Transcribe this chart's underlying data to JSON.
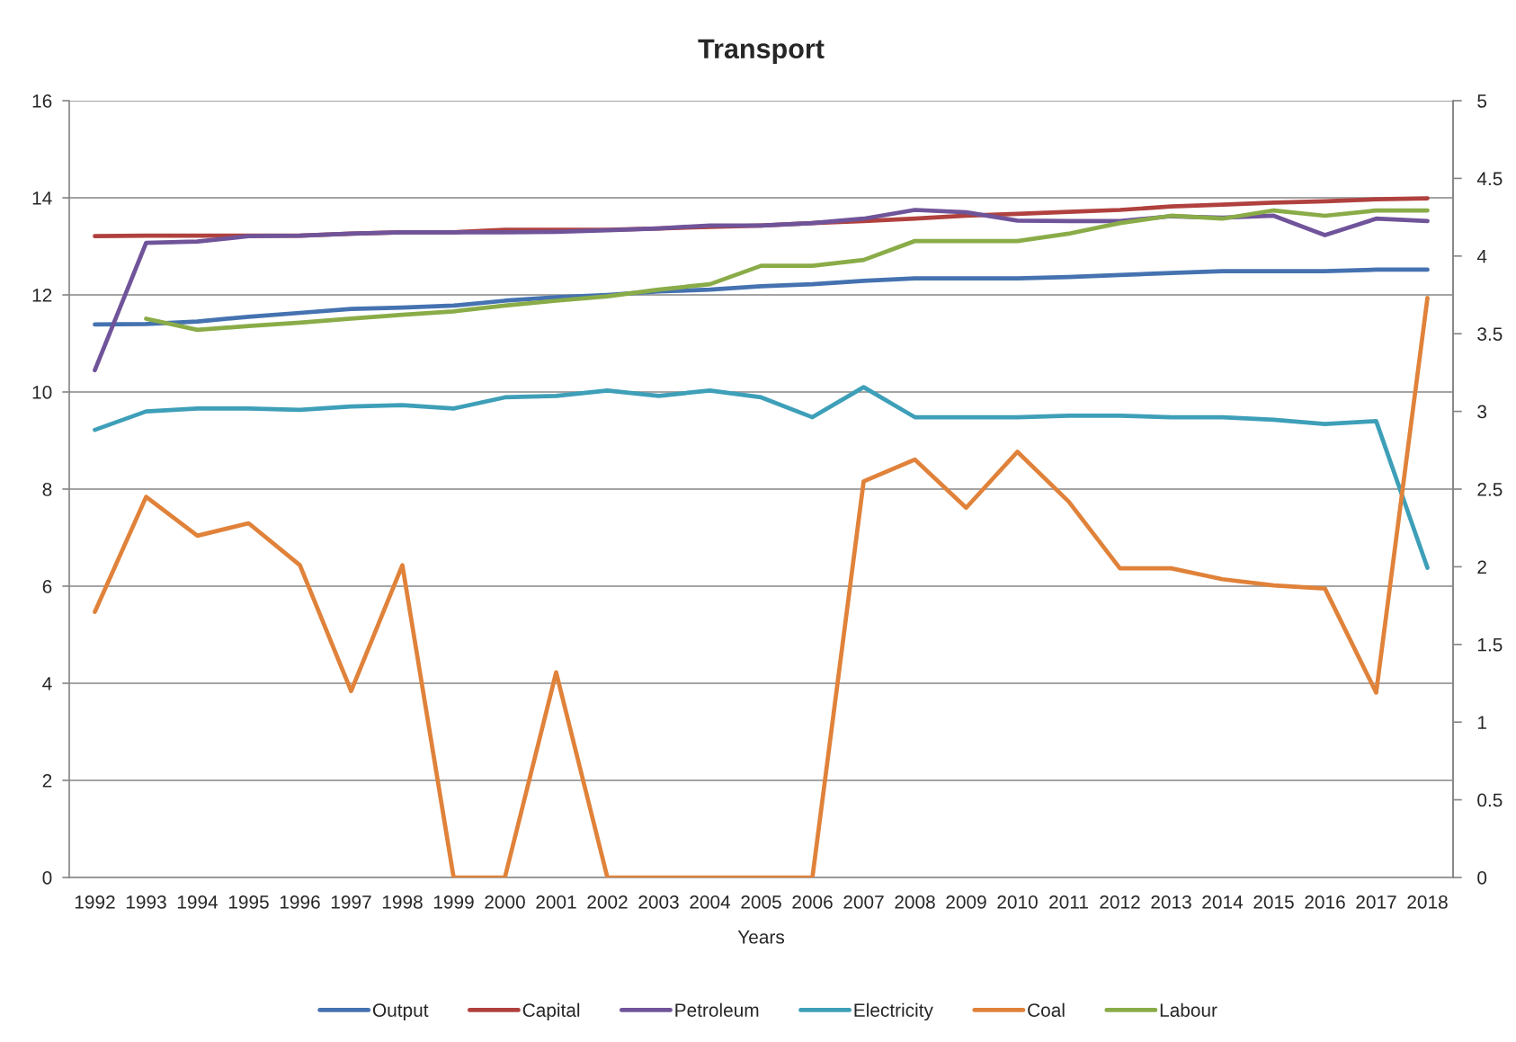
{
  "chart_data": {
    "type": "line",
    "title": "Transport",
    "xlabel": "Years",
    "categories": [
      "1992",
      "1993",
      "1994",
      "1995",
      "1996",
      "1997",
      "1998",
      "1999",
      "2000",
      "2001",
      "2002",
      "2003",
      "2004",
      "2005",
      "2006",
      "2007",
      "2008",
      "2009",
      "2010",
      "2011",
      "2012",
      "2013",
      "2014",
      "2015",
      "2016",
      "2017",
      "2018"
    ],
    "ylim": [
      0,
      16
    ],
    "yticks": [
      0,
      2,
      4,
      6,
      8,
      10,
      12,
      14,
      16
    ],
    "y2lim": [
      0,
      5
    ],
    "y2ticks": [
      0,
      0.5,
      1,
      1.5,
      2,
      2.5,
      3,
      3.5,
      4,
      4.5,
      5
    ],
    "grid": "y",
    "legend": "bottom",
    "series": [
      {
        "name": "Output",
        "color": "#4572b0",
        "values": [
          11.39,
          11.4,
          11.45,
          11.55,
          11.63,
          11.71,
          11.74,
          11.78,
          11.88,
          11.95,
          12.0,
          12.07,
          12.11,
          12.18,
          12.22,
          12.29,
          12.34,
          12.34,
          12.34,
          12.37,
          12.41,
          12.45,
          12.49,
          12.49,
          12.49,
          12.52,
          12.52
        ]
      },
      {
        "name": "Capital",
        "color": "#b0413e",
        "values": [
          13.21,
          13.22,
          13.22,
          13.22,
          13.22,
          13.26,
          13.29,
          13.29,
          13.34,
          13.34,
          13.34,
          13.37,
          13.4,
          13.43,
          13.48,
          13.52,
          13.57,
          13.63,
          13.67,
          13.71,
          13.75,
          13.82,
          13.86,
          13.9,
          13.93,
          13.97,
          13.99
        ]
      },
      {
        "name": "Petroleum",
        "color": "#70549a",
        "values": [
          10.45,
          13.07,
          13.1,
          13.21,
          13.22,
          13.26,
          13.29,
          13.29,
          13.29,
          13.3,
          13.33,
          13.37,
          13.43,
          13.43,
          13.48,
          13.57,
          13.75,
          13.7,
          13.53,
          13.52,
          13.52,
          13.62,
          13.59,
          13.63,
          13.23,
          13.57,
          13.52
        ]
      },
      {
        "name": "Electricity",
        "color": "#3e9fb8",
        "values": [
          9.22,
          9.6,
          9.66,
          9.66,
          9.63,
          9.7,
          9.73,
          9.66,
          9.89,
          9.92,
          10.03,
          9.92,
          10.03,
          9.89,
          9.48,
          10.1,
          9.48,
          9.48,
          9.48,
          9.51,
          9.51,
          9.48,
          9.48,
          9.43,
          9.34,
          9.4,
          6.38
        ]
      },
      {
        "name": "Coal",
        "color": "#e0823a",
        "axis": "y2",
        "values": [
          1.71,
          2.45,
          2.2,
          2.28,
          2.01,
          1.2,
          2.01,
          0,
          0,
          1.32,
          0,
          0,
          0,
          0,
          0,
          2.55,
          2.69,
          2.38,
          2.74,
          2.42,
          1.99,
          1.99,
          1.92,
          1.88,
          1.86,
          1.19,
          3.73
        ]
      },
      {
        "name": "Labour",
        "color": "#8aac48",
        "values": [
          null,
          11.51,
          11.28,
          11.36,
          11.43,
          11.51,
          11.59,
          11.66,
          11.78,
          11.88,
          11.97,
          12.11,
          12.22,
          12.6,
          12.6,
          12.72,
          13.11,
          13.11,
          13.11,
          13.26,
          13.48,
          13.63,
          13.57,
          13.74,
          13.63,
          13.74,
          13.74
        ]
      }
    ]
  }
}
